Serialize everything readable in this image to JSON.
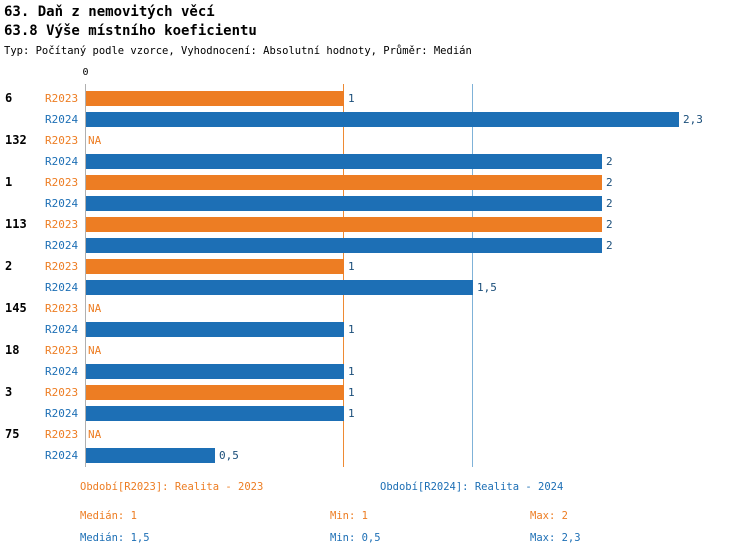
{
  "header": {
    "title_line1": "63. Daň z nemovitých věcí",
    "title_line2": "63.8 Výše místního koeficientu",
    "subtitle": "Typ: Počítaný podle vzorce, Vyhodnocení: Absolutní hodnoty, Průměr: Medián"
  },
  "colors": {
    "r2023": "#ED7D23",
    "r2024": "#1D6FB5",
    "median_line_2023": "#EE8A33",
    "median_line_2024": "#7FB2D8",
    "axis": "#B0B0B0",
    "value_label": "#1A4E7A"
  },
  "chart_data": {
    "type": "bar",
    "orientation": "horizontal",
    "title": "63. Daň z nemovitých věcí — 63.8 Výše místního koeficientu",
    "x_range": [
      0,
      2.5
    ],
    "origin_tick_label": "0",
    "grid": "vertical-median-lines",
    "legend_position": "bottom",
    "series_names": [
      "R2023",
      "R2024"
    ],
    "na_text": "NA",
    "medians": {
      "r2023": 1,
      "r2024": 1.5
    },
    "groups": [
      {
        "label": "6",
        "r2023": 1,
        "r2023_label": "1",
        "r2024": 2.3,
        "r2024_label": "2,3"
      },
      {
        "label": "132",
        "r2023": null,
        "r2023_label": "NA",
        "r2024": 2,
        "r2024_label": "2"
      },
      {
        "label": "1",
        "r2023": 2,
        "r2023_label": "2",
        "r2024": 2,
        "r2024_label": "2"
      },
      {
        "label": "113",
        "r2023": 2,
        "r2023_label": "2",
        "r2024": 2,
        "r2024_label": "2"
      },
      {
        "label": "2",
        "r2023": 1,
        "r2023_label": "1",
        "r2024": 1.5,
        "r2024_label": "1,5"
      },
      {
        "label": "145",
        "r2023": null,
        "r2023_label": "NA",
        "r2024": 1,
        "r2024_label": "1"
      },
      {
        "label": "18",
        "r2023": null,
        "r2023_label": "NA",
        "r2024": 1,
        "r2024_label": "1"
      },
      {
        "label": "3",
        "r2023": 1,
        "r2023_label": "1",
        "r2024": 1,
        "r2024_label": "1"
      },
      {
        "label": "75",
        "r2023": null,
        "r2023_label": "NA",
        "r2024": 0.5,
        "r2024_label": "0,5"
      }
    ]
  },
  "legend": {
    "r2023": "Období[R2023]: Realita - 2023",
    "r2024": "Období[R2024]: Realita - 2024"
  },
  "stats": {
    "r2023": {
      "median": "Medián: 1",
      "min": "Min: 1",
      "max": "Max: 2"
    },
    "r2024": {
      "median": "Medián: 1,5",
      "min": "Min: 0,5",
      "max": "Max: 2,3"
    }
  }
}
